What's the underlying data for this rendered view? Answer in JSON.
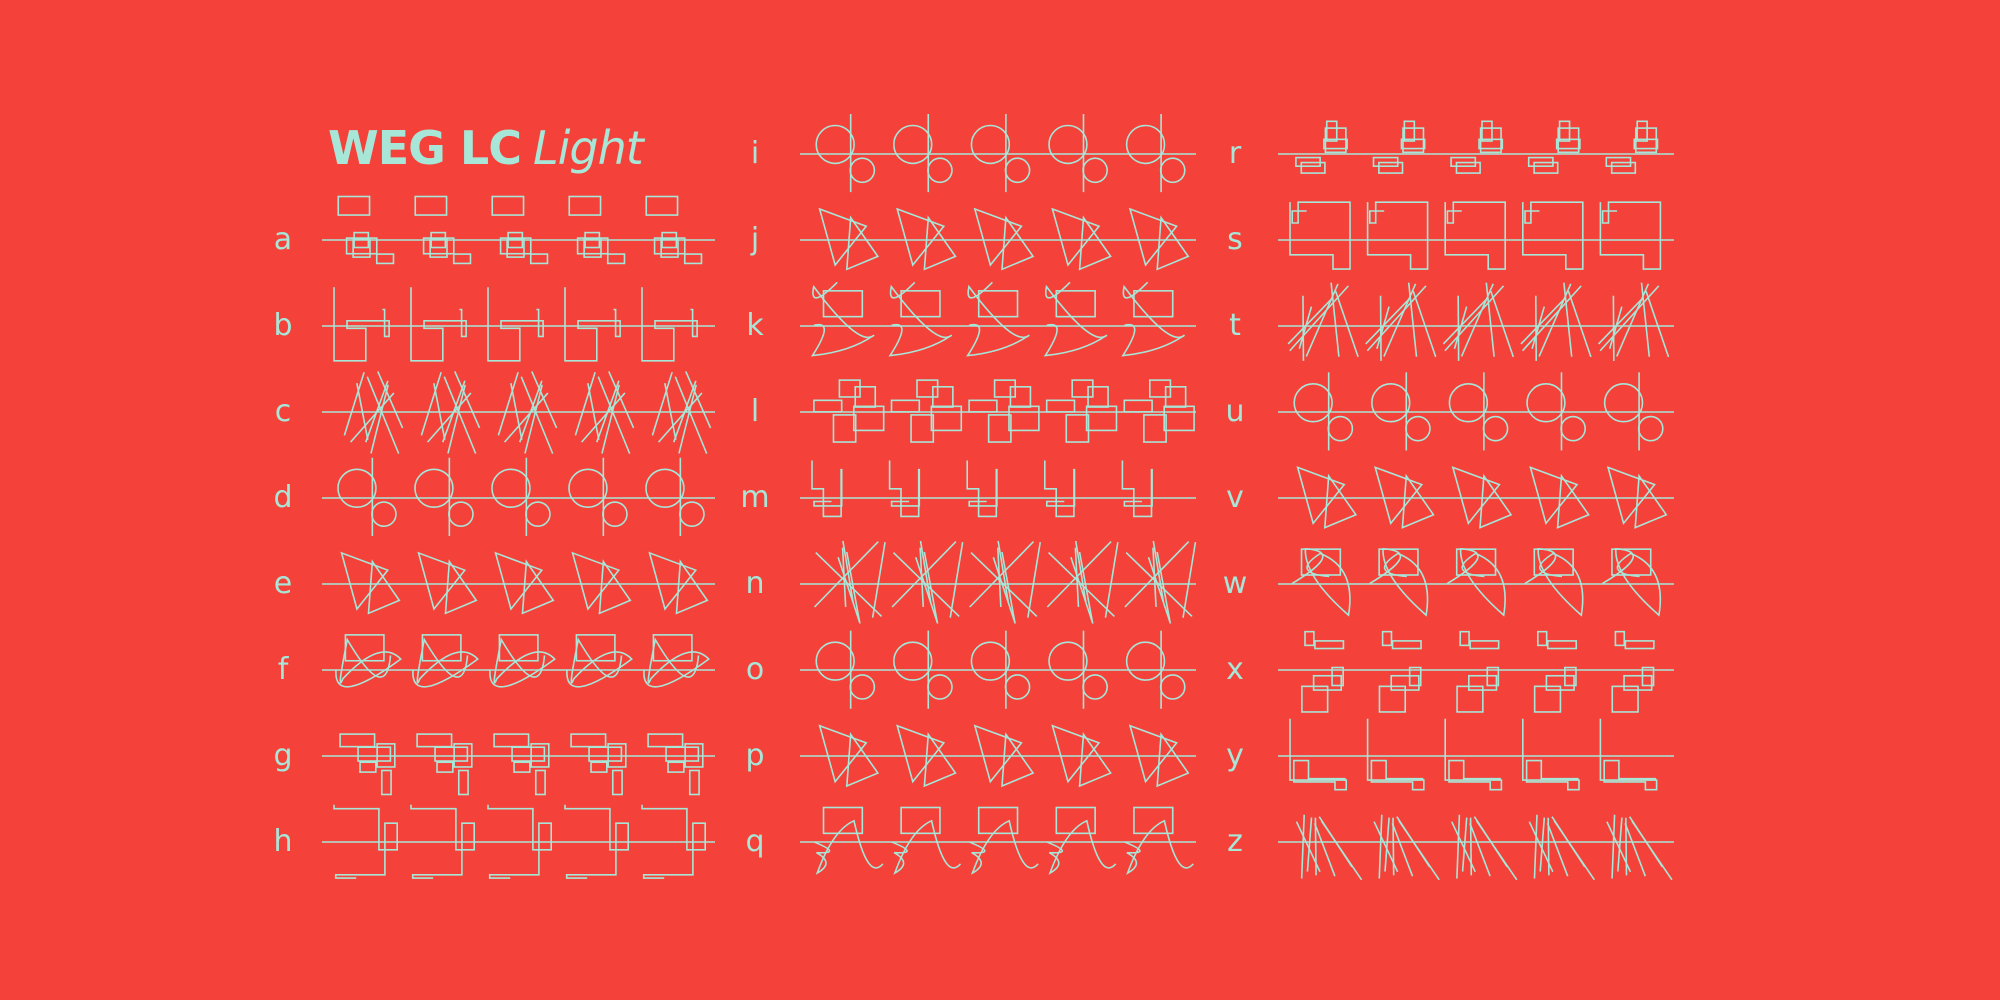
{
  "title": {
    "bold": "WEG LC",
    "style": "Light"
  },
  "colors": {
    "background": "#F4423A",
    "ink": "#A8E6D8"
  },
  "columns": [
    {
      "letters": [
        "a",
        "b",
        "c",
        "d",
        "e",
        "f",
        "g",
        "h"
      ]
    },
    {
      "letters": [
        "i",
        "j",
        "k",
        "l",
        "m",
        "n",
        "o",
        "p",
        "q"
      ]
    },
    {
      "letters": [
        "r",
        "s",
        "t",
        "u",
        "v",
        "w",
        "x",
        "y",
        "z"
      ]
    }
  ]
}
